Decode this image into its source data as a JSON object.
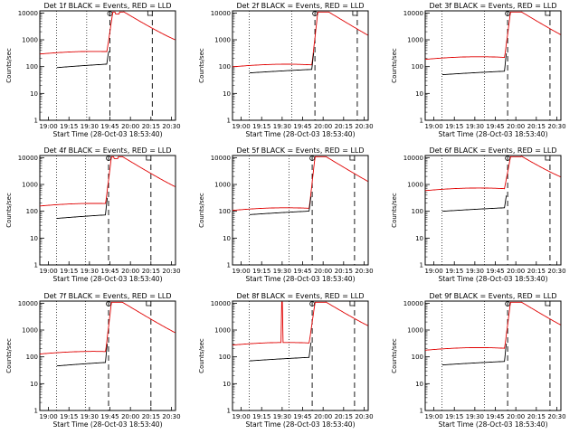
{
  "figure": {
    "type": "line",
    "layout": "3x3",
    "colors": {
      "events": "#000000",
      "lld": "#e00000",
      "marker": "#000000"
    },
    "ylabel": "Counts/sec",
    "xlabel": "Start Time (28-Oct-03 18:53:40)",
    "x_ticks": [
      "19:00",
      "19:15",
      "19:30",
      "19:45",
      "20:00",
      "20:15",
      "20:30"
    ],
    "y_ticks": [
      "1",
      "10",
      "100",
      "1000",
      "10000"
    ]
  },
  "chart_data": [
    {
      "title": "Det 1f BLACK = Events, RED = LLD",
      "type": "line",
      "yscale": "log",
      "xlim": [
        "18:53:40",
        "20:33:00"
      ],
      "ylim": [
        1,
        12000
      ],
      "series": [
        {
          "name": "Events",
          "color": "#000000",
          "x": [],
          "y": []
        },
        {
          "name": "LLD",
          "color": "#e00000",
          "x": [],
          "y": []
        }
      ]
    },
    {
      "title": "Det 2f BLACK = Events, RED = LLD",
      "type": "line",
      "yscale": "log",
      "xlim": [
        "18:53:40",
        "20:33:00"
      ],
      "ylim": [
        1,
        12000
      ],
      "series": [
        {
          "name": "Events",
          "color": "#000000",
          "x": [],
          "y": []
        },
        {
          "name": "LLD",
          "color": "#e00000",
          "x": [],
          "y": []
        }
      ]
    },
    {
      "title": "Det 3f BLACK = Events, RED = LLD",
      "type": "line",
      "yscale": "log",
      "xlim": [
        "18:53:40",
        "20:33:00"
      ],
      "ylim": [
        1,
        12000
      ],
      "series": [
        {
          "name": "Events",
          "color": "#000000",
          "x": [],
          "y": []
        },
        {
          "name": "LLD",
          "color": "#e00000",
          "x": [],
          "y": []
        }
      ]
    },
    {
      "title": "Det 4f BLACK = Events, RED = LLD",
      "type": "line",
      "yscale": "log",
      "xlim": [
        "18:53:40",
        "20:33:00"
      ],
      "ylim": [
        1,
        12000
      ],
      "series": [
        {
          "name": "Events",
          "color": "#000000",
          "x": [],
          "y": []
        },
        {
          "name": "LLD",
          "color": "#e00000",
          "x": [],
          "y": []
        }
      ]
    },
    {
      "title": "Det 5f BLACK = Events, RED = LLD",
      "type": "line",
      "yscale": "log",
      "xlim": [
        "18:53:40",
        "20:33:00"
      ],
      "ylim": [
        1,
        12000
      ],
      "series": [
        {
          "name": "Events",
          "color": "#000000",
          "x": [],
          "y": []
        },
        {
          "name": "LLD",
          "color": "#e00000",
          "x": [],
          "y": []
        }
      ]
    },
    {
      "title": "Det 6f BLACK = Events, RED = LLD",
      "type": "line",
      "yscale": "log",
      "xlim": [
        "18:53:40",
        "20:33:00"
      ],
      "ylim": [
        1,
        12000
      ],
      "series": [
        {
          "name": "Events",
          "color": "#000000",
          "x": [],
          "y": []
        },
        {
          "name": "LLD",
          "color": "#e00000",
          "x": [],
          "y": []
        }
      ]
    },
    {
      "title": "Det 7f BLACK = Events, RED = LLD",
      "type": "line",
      "yscale": "log",
      "xlim": [
        "18:53:40",
        "20:33:00"
      ],
      "ylim": [
        1,
        12000
      ],
      "series": [
        {
          "name": "Events",
          "color": "#000000",
          "x": [],
          "y": []
        },
        {
          "name": "LLD",
          "color": "#e00000",
          "x": [],
          "y": []
        }
      ]
    },
    {
      "title": "Det 8f BLACK = Events, RED = LLD",
      "type": "line",
      "yscale": "log",
      "xlim": [
        "18:53:40",
        "20:33:00"
      ],
      "ylim": [
        1,
        12000
      ],
      "series": [
        {
          "name": "Events",
          "color": "#000000",
          "x": [],
          "y": []
        },
        {
          "name": "LLD",
          "color": "#e00000",
          "x": [],
          "y": []
        }
      ]
    },
    {
      "title": "Det 9f BLACK = Events, RED = LLD",
      "type": "line",
      "yscale": "log",
      "xlim": [
        "18:53:40",
        "20:33:00"
      ],
      "ylim": [
        1,
        12000
      ],
      "series": [
        {
          "name": "Events",
          "color": "#000000",
          "x": [],
          "y": []
        },
        {
          "name": "LLD",
          "color": "#e00000",
          "x": [],
          "y": []
        }
      ]
    }
  ]
}
